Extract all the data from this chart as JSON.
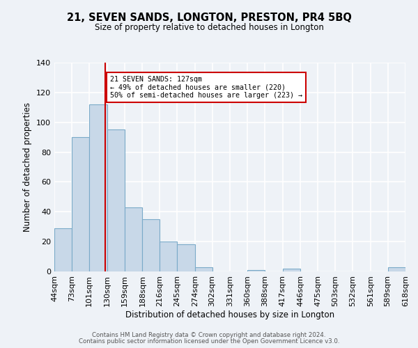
{
  "title": "21, SEVEN SANDS, LONGTON, PRESTON, PR4 5BQ",
  "subtitle": "Size of property relative to detached houses in Longton",
  "xlabel": "Distribution of detached houses by size in Longton",
  "ylabel": "Number of detached properties",
  "bins": [
    44,
    73,
    101,
    130,
    159,
    188,
    216,
    245,
    274,
    302,
    331,
    360,
    388,
    417,
    446,
    475,
    503,
    532,
    561,
    589,
    618
  ],
  "counts": [
    29,
    90,
    112,
    95,
    43,
    35,
    20,
    18,
    3,
    0,
    0,
    1,
    0,
    2,
    0,
    0,
    0,
    0,
    0,
    3
  ],
  "bar_color": "#c8d8e8",
  "bar_edge_color": "#7aaac8",
  "vline_x": 127,
  "vline_color": "#cc0000",
  "ylim": [
    0,
    140
  ],
  "yticks": [
    0,
    20,
    40,
    60,
    80,
    100,
    120,
    140
  ],
  "annotation_text": "21 SEVEN SANDS: 127sqm\n← 49% of detached houses are smaller (220)\n50% of semi-detached houses are larger (223) →",
  "annotation_box_color": "#ffffff",
  "annotation_box_edge": "#cc0000",
  "footer1": "Contains HM Land Registry data © Crown copyright and database right 2024.",
  "footer2": "Contains public sector information licensed under the Open Government Licence v3.0.",
  "background_color": "#eef2f7",
  "grid_color": "#ffffff",
  "tick_labels": [
    "44sqm",
    "73sqm",
    "101sqm",
    "130sqm",
    "159sqm",
    "188sqm",
    "216sqm",
    "245sqm",
    "274sqm",
    "302sqm",
    "331sqm",
    "360sqm",
    "388sqm",
    "417sqm",
    "446sqm",
    "475sqm",
    "503sqm",
    "532sqm",
    "561sqm",
    "589sqm",
    "618sqm"
  ]
}
